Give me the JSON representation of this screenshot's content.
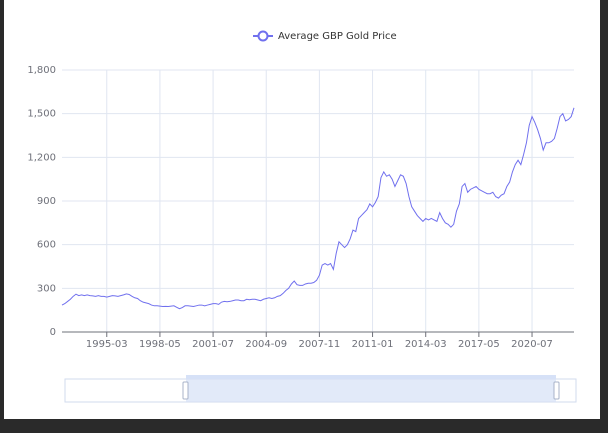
{
  "chart_data": {
    "type": "line",
    "legend": "Average GBP Gold Price",
    "categories": [
      null,
      null,
      null,
      null,
      null,
      null,
      null,
      null,
      null,
      null,
      null,
      null,
      null,
      null,
      null,
      null,
      "1995-03",
      null,
      null,
      null,
      null,
      null,
      null,
      null,
      null,
      null,
      null,
      null,
      null,
      null,
      null,
      null,
      null,
      null,
      null,
      "1998-05",
      null,
      null,
      null,
      null,
      null,
      null,
      null,
      null,
      null,
      null,
      null,
      null,
      null,
      null,
      null,
      null,
      null,
      null,
      "2001-07",
      null,
      null,
      null,
      null,
      null,
      null,
      null,
      null,
      null,
      null,
      null,
      null,
      null,
      null,
      null,
      null,
      null,
      null,
      "2004-09",
      null,
      null,
      null,
      null,
      null,
      null,
      null,
      null,
      null,
      null,
      null,
      null,
      null,
      null,
      null,
      null,
      null,
      null,
      "2007-11",
      null,
      null,
      null,
      null,
      null,
      null,
      null,
      null,
      null,
      null,
      null,
      null,
      null,
      null,
      null,
      null,
      null,
      null,
      "2011-01",
      null,
      null,
      null,
      null,
      null,
      null,
      null,
      null,
      null,
      null,
      null,
      null,
      null,
      null,
      null,
      null,
      null,
      null,
      "2014-03",
      null,
      null,
      null,
      null,
      null,
      null,
      null,
      null,
      null,
      null,
      null,
      null,
      null,
      null,
      null,
      null,
      null,
      null,
      "2017-05",
      null,
      null,
      null,
      null,
      null,
      null,
      null,
      null,
      null,
      null,
      null,
      null,
      null,
      null,
      null,
      null,
      null,
      null,
      "2020-07",
      null,
      null,
      null,
      null,
      null,
      null,
      null,
      null,
      null,
      null,
      null,
      null,
      null,
      null,
      null
    ],
    "series": [
      {
        "name": "Average GBP Gold Price",
        "color": "#7070ee",
        "values": [
          185,
          195,
          210,
          225,
          245,
          260,
          250,
          255,
          250,
          255,
          250,
          248,
          245,
          250,
          245,
          245,
          240,
          245,
          250,
          248,
          245,
          250,
          255,
          262,
          258,
          245,
          235,
          230,
          215,
          205,
          200,
          195,
          185,
          180,
          180,
          178,
          175,
          176,
          175,
          178,
          180,
          170,
          160,
          168,
          180,
          180,
          178,
          175,
          180,
          185,
          185,
          180,
          185,
          190,
          195,
          195,
          190,
          205,
          210,
          208,
          210,
          215,
          220,
          220,
          215,
          215,
          225,
          222,
          225,
          225,
          220,
          215,
          225,
          230,
          235,
          230,
          235,
          245,
          250,
          265,
          285,
          300,
          330,
          350,
          325,
          320,
          320,
          330,
          335,
          335,
          340,
          355,
          390,
          460,
          470,
          460,
          470,
          430,
          540,
          620,
          600,
          580,
          600,
          640,
          700,
          690,
          780,
          800,
          820,
          840,
          880,
          860,
          890,
          930,
          1060,
          1100,
          1070,
          1080,
          1050,
          1000,
          1040,
          1080,
          1070,
          1020,
          930,
          860,
          830,
          800,
          780,
          760,
          780,
          770,
          780,
          770,
          760,
          820,
          780,
          750,
          740,
          720,
          740,
          830,
          880,
          1000,
          1020,
          960,
          980,
          990,
          1000,
          980,
          970,
          960,
          950,
          950,
          960,
          930,
          920,
          940,
          950,
          1000,
          1030,
          1100,
          1150,
          1180,
          1150,
          1220,
          1300,
          1420,
          1480,
          1440,
          1390,
          1330,
          1250,
          1300,
          1300,
          1310,
          1330,
          1400,
          1480,
          1500,
          1450,
          1460,
          1480,
          1540
        ]
      }
    ],
    "ylim": [
      0,
      1800
    ],
    "yticks": [
      0,
      300,
      600,
      900,
      {
        "value": 1200,
        "label": "1,200"
      },
      {
        "value": 1500,
        "label": "1,500"
      },
      {
        "value": 1800,
        "label": "1,800"
      }
    ],
    "grid": true
  }
}
